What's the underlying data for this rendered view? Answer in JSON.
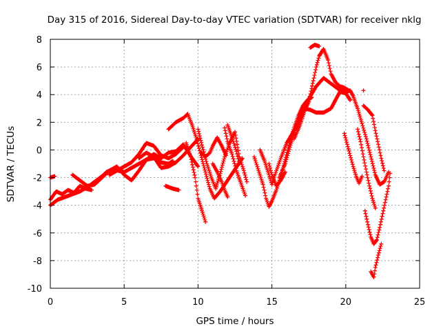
{
  "chart_data": {
    "type": "scatter",
    "title": "Day 315 of 2016, Sidereal Day-to-day VTEC variation (SDTVAR) for receiver nklg",
    "xlabel": "GPS time / hours",
    "ylabel": "SDTVAR / TECUs",
    "xlim": [
      0,
      25
    ],
    "ylim": [
      -10,
      8
    ],
    "xticks": [
      "0",
      "5",
      "10",
      "15",
      "20",
      "25"
    ],
    "yticks": [
      "-10",
      "-8",
      "-6",
      "-4",
      "-2",
      "0",
      "2",
      "4",
      "6",
      "8"
    ],
    "grid": true,
    "marker": "plus",
    "color": "#ff0000",
    "series": [
      {
        "tracks": [
          [
            [
              0,
              -4.0
            ],
            [
              0.5,
              -3.6
            ],
            [
              1,
              -3.4
            ],
            [
              1.5,
              -3.2
            ],
            [
              2,
              -3.0
            ],
            [
              2.5,
              -2.7
            ],
            [
              3,
              -2.3
            ],
            [
              3.5,
              -1.9
            ],
            [
              3.8,
              -1.6
            ],
            [
              4.2,
              -1.4
            ],
            [
              4.6,
              -1.5
            ],
            [
              5,
              -1.6
            ],
            [
              5.5,
              -1.3
            ],
            [
              6,
              -1.0
            ],
            [
              6.5,
              -0.7
            ],
            [
              7,
              -0.6
            ],
            [
              7.5,
              -0.9
            ],
            [
              8,
              -1.0
            ],
            [
              8.3,
              -0.8
            ]
          ],
          [
            [
              0,
              -3.6
            ],
            [
              0.4,
              -3.0
            ],
            [
              0.8,
              -3.2
            ],
            [
              1.2,
              -2.9
            ],
            [
              1.6,
              -3.1
            ],
            [
              2.0,
              -2.6
            ],
            [
              2.4,
              -2.8
            ],
            [
              2.8,
              -2.9
            ]
          ],
          [
            [
              0,
              -2.0
            ],
            [
              0.3,
              -1.9
            ]
          ],
          [
            [
              1.5,
              -1.8
            ],
            [
              2.0,
              -2.2
            ],
            [
              2.5,
              -2.6
            ],
            [
              3.0,
              -2.5
            ],
            [
              3.5,
              -2.0
            ],
            [
              4,
              -1.5
            ],
            [
              4.5,
              -1.2
            ],
            [
              5,
              -1.8
            ],
            [
              5.5,
              -2.2
            ],
            [
              6,
              -1.5
            ],
            [
              6.5,
              -0.7
            ],
            [
              7,
              -0.3
            ],
            [
              7.5,
              -0.6
            ],
            [
              8,
              -0.2
            ],
            [
              8.5,
              -0.1
            ],
            [
              9,
              0.4
            ],
            [
              9.3,
              -0.1
            ],
            [
              9.6,
              -0.6
            ],
            [
              10,
              -1.2
            ]
          ],
          [
            [
              4,
              -1.8
            ],
            [
              4.5,
              -1.5
            ],
            [
              5,
              -1.2
            ],
            [
              5.5,
              -0.9
            ],
            [
              6,
              -0.3
            ],
            [
              6.5,
              0.5
            ],
            [
              7,
              0.3
            ],
            [
              7.5,
              -0.4
            ],
            [
              8,
              -0.6
            ],
            [
              8.5,
              -0.3
            ],
            [
              9,
              0.2
            ]
          ],
          [
            [
              6.0,
              -0.6
            ],
            [
              6.5,
              -0.2
            ],
            [
              7.0,
              -0.5
            ],
            [
              7.5,
              -1.3
            ],
            [
              8.0,
              -1.2
            ],
            [
              8.5,
              -0.9
            ],
            [
              9.0,
              -0.4
            ],
            [
              9.5,
              0.2
            ],
            [
              10,
              0.8
            ]
          ],
          [
            [
              7.8,
              -2.6
            ],
            [
              8.3,
              -2.8
            ],
            [
              8.7,
              -2.9
            ]
          ],
          [
            [
              8.0,
              1.5
            ],
            [
              8.5,
              2.0
            ],
            [
              9.0,
              2.3
            ],
            [
              9.3,
              2.6
            ],
            [
              9.6,
              1.8
            ],
            [
              9.9,
              0.8
            ],
            [
              10.2,
              -0.4
            ],
            [
              10.5,
              -1.6
            ],
            [
              10.8,
              -2.8
            ],
            [
              11.1,
              -3.5
            ],
            [
              11.5,
              -3.0
            ],
            [
              12,
              -2.2
            ],
            [
              12.5,
              -1.4
            ],
            [
              13,
              -0.6
            ]
          ],
          [
            [
              9.2,
              0.5
            ],
            [
              9.5,
              -0.5
            ],
            [
              9.8,
              -2.0
            ],
            [
              10.0,
              -3.5
            ],
            [
              10.3,
              -4.5
            ],
            [
              10.5,
              -5.2
            ]
          ],
          [
            [
              10.0,
              1.5
            ],
            [
              10.3,
              0.2
            ],
            [
              10.6,
              -1.0
            ],
            [
              10.9,
              -2.0
            ],
            [
              11.2,
              -2.8
            ],
            [
              11.5,
              -1.7
            ],
            [
              11.8,
              -0.5
            ],
            [
              12.1,
              0.4
            ],
            [
              12.5,
              1.3
            ],
            [
              12.8,
              -0.5
            ],
            [
              13.1,
              -1.5
            ],
            [
              13.3,
              -2.3
            ]
          ],
          [
            [
              11.8,
              1.6
            ],
            [
              12.0,
              0.6
            ],
            [
              12.3,
              -0.3
            ],
            [
              12.6,
              -1.5
            ],
            [
              12.9,
              -2.4
            ],
            [
              13.2,
              -3.3
            ]
          ],
          [
            [
              12.0,
              1.8
            ],
            [
              12.3,
              0.9
            ],
            [
              12.6,
              -0.1
            ],
            [
              12.8,
              -1.0
            ]
          ],
          [
            [
              10.2,
              -0.2
            ],
            [
              10.5,
              -0.5
            ],
            [
              10.8,
              -0.2
            ],
            [
              11.0,
              0.3
            ],
            [
              11.3,
              0.9
            ],
            [
              11.6,
              0.3
            ],
            [
              11.9,
              -0.4
            ]
          ],
          [
            [
              11.0,
              -1.0
            ],
            [
              11.3,
              -1.6
            ],
            [
              11.6,
              -2.3
            ],
            [
              11.8,
              -2.9
            ],
            [
              12.0,
              -3.4
            ]
          ],
          [
            [
              13.8,
              -0.5
            ],
            [
              14.1,
              -1.5
            ],
            [
              14.4,
              -2.5
            ],
            [
              14.6,
              -3.5
            ],
            [
              14.8,
              -4.1
            ],
            [
              15.0,
              -3.7
            ],
            [
              15.3,
              -2.9
            ],
            [
              15.6,
              -1.9
            ],
            [
              15.9,
              -0.7
            ],
            [
              16.2,
              0.5
            ],
            [
              16.5,
              1.6
            ],
            [
              16.8,
              2.5
            ],
            [
              17.1,
              3.2
            ],
            [
              17.4,
              3.6
            ],
            [
              17.7,
              3.8
            ]
          ],
          [
            [
              14.2,
              0.0
            ],
            [
              14.5,
              -0.8
            ],
            [
              14.8,
              -1.8
            ],
            [
              15.0,
              -2.5
            ],
            [
              15.3,
              -1.5
            ],
            [
              15.6,
              -0.6
            ],
            [
              16.0,
              0.5
            ],
            [
              16.5,
              1.4
            ],
            [
              17.0,
              2.4
            ],
            [
              17.5,
              3.7
            ],
            [
              18.0,
              4.6
            ],
            [
              18.5,
              5.2
            ],
            [
              19.0,
              4.8
            ],
            [
              19.5,
              4.4
            ],
            [
              20.0,
              4.2
            ],
            [
              20.3,
              4.3
            ],
            [
              20.5,
              3.9
            ],
            [
              20.8,
              3.0
            ],
            [
              21.1,
              1.9
            ],
            [
              21.4,
              0.8
            ],
            [
              21.7,
              -0.5
            ],
            [
              22.0,
              -1.8
            ],
            [
              22.3,
              -2.5
            ],
            [
              22.6,
              -2.3
            ],
            [
              22.9,
              -1.6
            ]
          ],
          [
            [
              14.8,
              -1.0
            ],
            [
              15.0,
              -1.8
            ],
            [
              15.3,
              -2.6
            ],
            [
              15.6,
              -2.2
            ],
            [
              15.9,
              -1.6
            ]
          ],
          [
            [
              15.5,
              -2.0
            ],
            [
              15.9,
              -1.0
            ],
            [
              16.3,
              0.5
            ],
            [
              16.8,
              2.2
            ],
            [
              17.2,
              3.0
            ],
            [
              17.6,
              2.9
            ],
            [
              18.0,
              2.7
            ],
            [
              18.5,
              2.7
            ],
            [
              19.0,
              3.0
            ],
            [
              19.3,
              3.6
            ],
            [
              19.6,
              4.2
            ],
            [
              20.0,
              4.1
            ],
            [
              20.3,
              3.6
            ]
          ],
          [
            [
              16.5,
              0.8
            ],
            [
              16.9,
              1.8
            ],
            [
              17.2,
              2.8
            ],
            [
              17.5,
              3.5
            ],
            [
              17.8,
              5.0
            ],
            [
              18.0,
              6.0
            ],
            [
              18.2,
              6.8
            ],
            [
              18.5,
              7.3
            ],
            [
              18.8,
              6.5
            ],
            [
              19.0,
              5.5
            ],
            [
              19.3,
              4.9
            ],
            [
              19.6,
              4.6
            ],
            [
              19.9,
              4.5
            ],
            [
              20.2,
              4.3
            ]
          ],
          [
            [
              17.6,
              7.4
            ],
            [
              17.9,
              7.6
            ],
            [
              18.2,
              7.5
            ]
          ],
          [
            [
              19.9,
              1.2
            ],
            [
              20.1,
              0.4
            ],
            [
              20.3,
              -0.4
            ],
            [
              20.5,
              -1.2
            ],
            [
              20.7,
              -1.9
            ],
            [
              20.9,
              -2.4
            ],
            [
              21.1,
              -1.9
            ]
          ],
          [
            [
              20.8,
              1.5
            ],
            [
              21.0,
              0.6
            ],
            [
              21.2,
              -0.5
            ],
            [
              21.4,
              -1.6
            ],
            [
              21.6,
              -2.6
            ],
            [
              21.8,
              -3.5
            ],
            [
              22.0,
              -4.2
            ]
          ],
          [
            [
              21.3,
              -4.4
            ],
            [
              21.5,
              -5.4
            ],
            [
              21.7,
              -6.3
            ],
            [
              21.9,
              -6.8
            ],
            [
              22.1,
              -6.5
            ],
            [
              22.3,
              -5.6
            ],
            [
              22.5,
              -4.6
            ],
            [
              22.7,
              -3.6
            ],
            [
              22.9,
              -2.6
            ],
            [
              23.0,
              -1.7
            ]
          ],
          [
            [
              21.7,
              -8.8
            ],
            [
              21.9,
              -9.2
            ],
            [
              22.0,
              -8.5
            ],
            [
              22.2,
              -7.6
            ],
            [
              22.4,
              -6.8
            ]
          ],
          [
            [
              21.2,
              3.2
            ],
            [
              21.5,
              2.9
            ],
            [
              21.8,
              2.5
            ],
            [
              22.0,
              1.4
            ],
            [
              22.2,
              0.4
            ],
            [
              22.4,
              -0.6
            ],
            [
              22.6,
              -1.5
            ]
          ],
          [
            [
              21.2,
              4.3
            ]
          ]
        ]
      }
    ]
  }
}
